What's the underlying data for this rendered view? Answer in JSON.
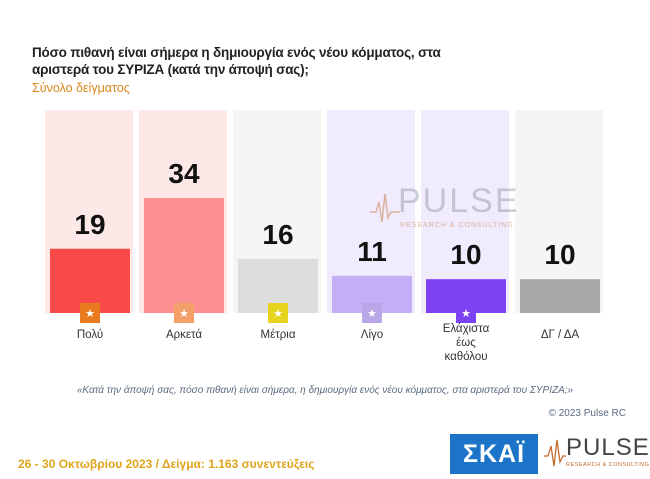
{
  "chart_data": {
    "type": "bar",
    "title": "Πόσο πιθανή είναι σήμερα η δημιουργία ενός νέου κόμματος, στα αριστερά του ΣΥΡΙΖΑ (κατά την άποψή σας);",
    "subtitle": "Σύνολο δείγματος",
    "categories": [
      "Πολύ",
      "Αρκετά",
      "Μέτρια",
      "Λίγο",
      "Ελάχιστα έως καθόλου",
      "ΔΓ / ΔΑ"
    ],
    "values": [
      19,
      34,
      16,
      11,
      10,
      10
    ],
    "colors": [
      "#f94a4a",
      "#fc8f8f",
      "#dddddd",
      "#c4aef6",
      "#7d43f2",
      "#a9a9a9"
    ],
    "background_colors": [
      "#fde8e8",
      "#fde8e8",
      "#f5f5f5",
      "#f0ebfd",
      "#f0ebfd",
      "#f5f5f5"
    ],
    "icon_colors": [
      "#e87a1f",
      "#f3a06a",
      "#e7d41e",
      "#b9a6e8",
      "#7d43f2",
      null
    ],
    "ylim": [
      0,
      60
    ],
    "grid": false,
    "legend": "none"
  },
  "question_text": "«Κατά την άποψή σας, πόσο πιθανή είναι σήμερα, η δημιουργία ενός νέου κόμματος, στα αριστερά του ΣΥΡΙΖΑ;»",
  "copyright": "© 2023 Pulse RC",
  "footer": "26 - 30  Οκτωβρίου  2023  /  Δείγμα:  1.163 συνεντεύξεις",
  "logos": {
    "skai": "ΣΚΑΪ",
    "pulse": "PULSE",
    "pulse_sub": "RESEARCH & CONSULTING"
  }
}
